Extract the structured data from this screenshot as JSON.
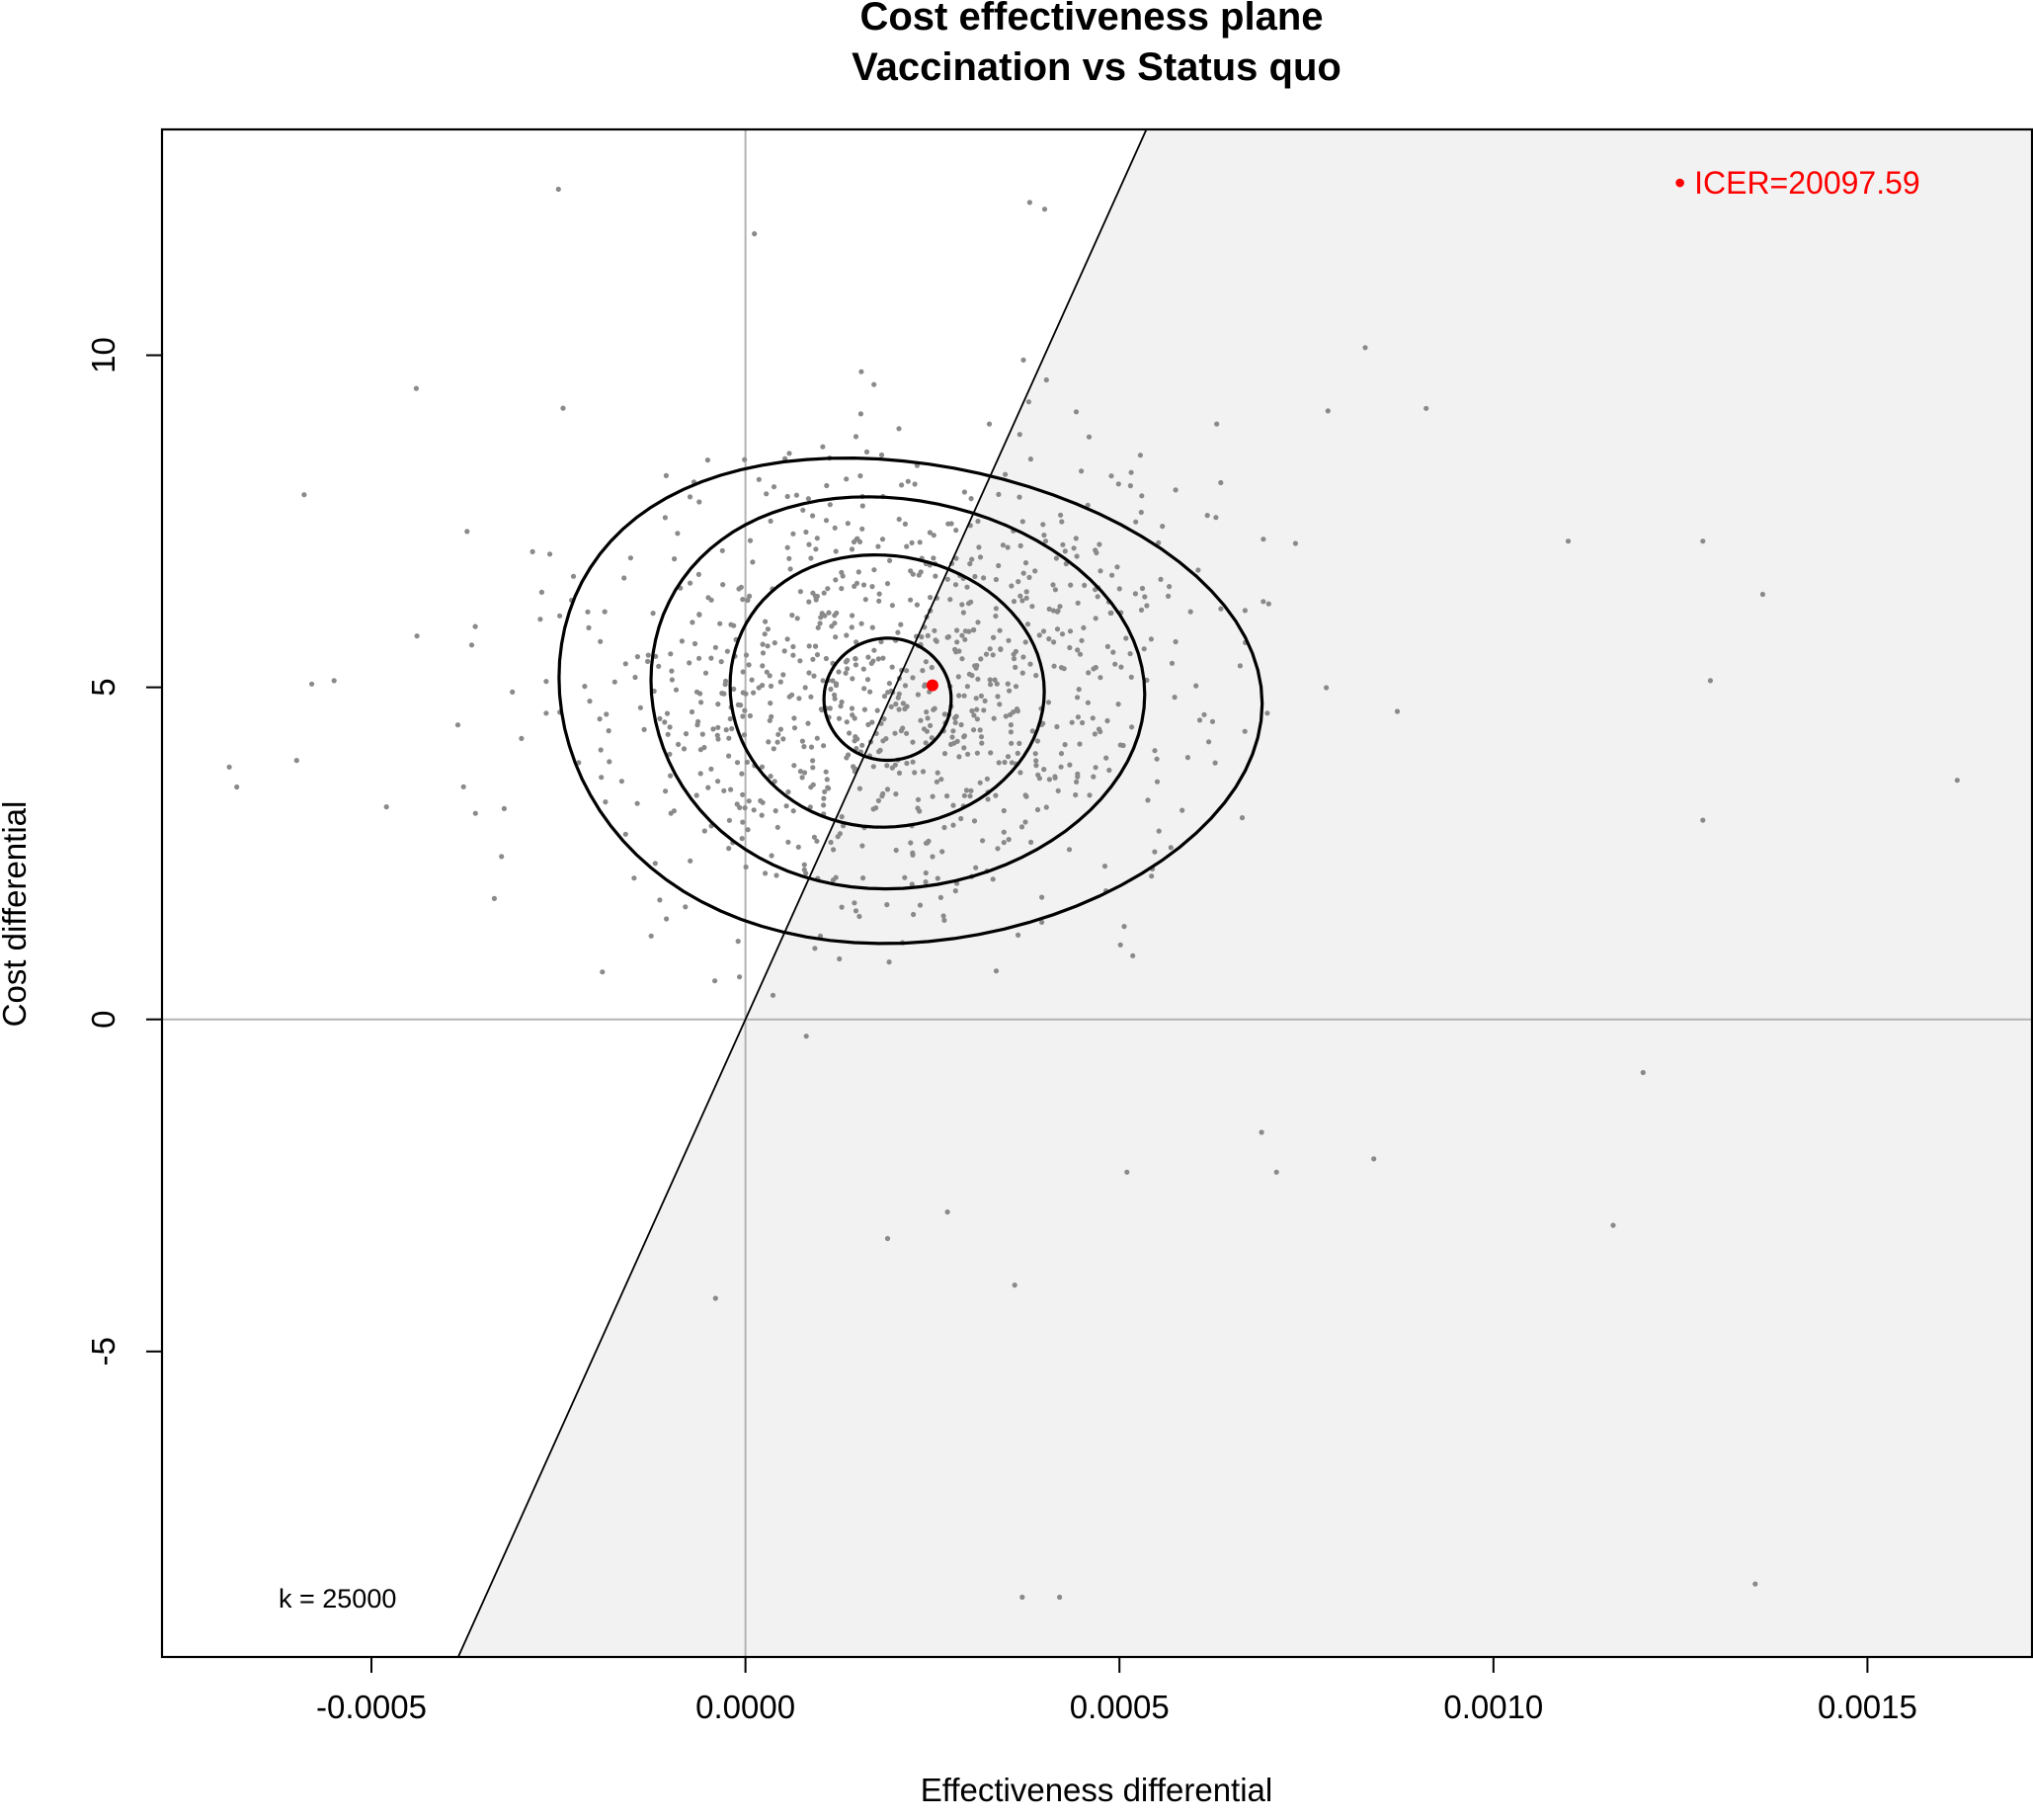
{
  "chart_data": {
    "type": "scatter",
    "title": "Cost effectiveness plane",
    "subtitle": "Vaccination vs Status quo",
    "xlabel": "Effectiveness differential",
    "ylabel": "Cost differential",
    "xlim": [
      -0.00078,
      0.00172
    ],
    "ylim": [
      -9.6,
      13.4
    ],
    "x_ticks": [
      -0.0005,
      0.0,
      0.0005,
      0.001,
      0.0015
    ],
    "x_tick_labels": [
      "-0.0005",
      "0.0000",
      "0.0005",
      "0.0010",
      "0.0015"
    ],
    "y_ticks": [
      -5,
      0,
      5,
      10
    ],
    "y_tick_labels": [
      "-5",
      "0",
      "5",
      "10"
    ],
    "grid": false,
    "willingness_to_pay": 25000,
    "k_label": "k = 25000",
    "icer_label": "• ICER=20097.59",
    "mean_point": {
      "x": 0.00025,
      "y": 5.03
    },
    "contour_levels": [
      {
        "cx": 0.00017,
        "cy": 4.95,
        "rx": 0.00047,
        "ry": 3.65,
        "skew": 0.12
      },
      {
        "cx": 0.00018,
        "cy": 5.0,
        "rx": 0.00033,
        "ry": 2.95,
        "skew": 0.08
      },
      {
        "cx": 0.00018,
        "cy": 4.98,
        "rx": 0.00021,
        "ry": 2.05,
        "skew": 0.05
      },
      {
        "cx": 0.00019,
        "cy": 4.82,
        "rx": 8.5e-05,
        "ry": 0.92,
        "skew": 0.0
      }
    ],
    "bootstrap_samples": 1000,
    "points_sample_outliers": [
      {
        "x": -0.00025,
        "y": 12.5
      },
      {
        "x": 0.00038,
        "y": 12.3
      },
      {
        "x": 0.0004,
        "y": 12.2
      },
      {
        "x": -0.00059,
        "y": 7.9
      },
      {
        "x": -0.00069,
        "y": 3.8
      },
      {
        "x": -0.00068,
        "y": 3.5
      },
      {
        "x": -0.0006,
        "y": 3.9
      },
      {
        "x": -0.00055,
        "y": 5.1
      },
      {
        "x": -0.00048,
        "y": 3.2
      },
      {
        "x": -0.00044,
        "y": 9.5
      },
      {
        "x": 0.00162,
        "y": 3.6
      },
      {
        "x": 0.00136,
        "y": 6.4
      },
      {
        "x": 0.00128,
        "y": 7.2
      },
      {
        "x": 0.00129,
        "y": 5.1
      },
      {
        "x": 0.00128,
        "y": 3.0
      },
      {
        "x": 0.00135,
        "y": -8.5
      },
      {
        "x": 0.00116,
        "y": -3.1
      },
      {
        "x": 0.0012,
        "y": -0.8
      },
      {
        "x": 0.00037,
        "y": -8.7
      },
      {
        "x": 0.00042,
        "y": -8.7
      },
      {
        "x": -4e-05,
        "y": -4.2
      },
      {
        "x": 0.00019,
        "y": -3.3
      },
      {
        "x": 0.00036,
        "y": -4.0
      },
      {
        "x": 0.00027,
        "y": -2.9
      },
      {
        "x": 0.00069,
        "y": -1.7
      },
      {
        "x": 0.00071,
        "y": -2.3
      },
      {
        "x": 0.00084,
        "y": -2.1
      },
      {
        "x": 0.00051,
        "y": -2.3
      },
      {
        "x": 0.0011,
        "y": 7.2
      },
      {
        "x": 0.00091,
        "y": 9.2
      }
    ],
    "colors": {
      "points": "#8a8a8a",
      "mean": "#ff0000",
      "icer_text": "#ff0000",
      "region": "#f2f2f2",
      "axes_ref": "#b3b3b3",
      "contours": "#000000",
      "wtp_line": "#000000"
    }
  }
}
